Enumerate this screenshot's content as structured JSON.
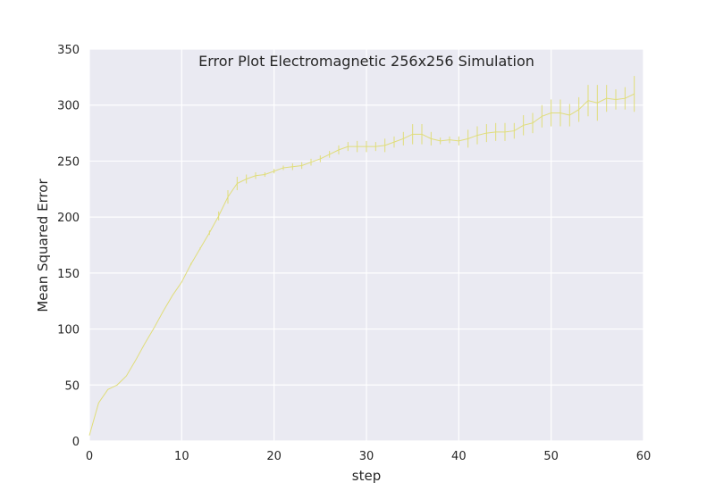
{
  "chart_data": {
    "type": "line",
    "title": "Error Plot Electromagnetic 256x256 Simulation",
    "xlabel": "step",
    "ylabel": "Mean Squared Error",
    "xlim": [
      0,
      60
    ],
    "ylim": [
      0,
      350
    ],
    "xticks": [
      0,
      10,
      20,
      30,
      40,
      50,
      60
    ],
    "yticks": [
      0,
      50,
      100,
      150,
      200,
      250,
      300,
      350
    ],
    "grid": true,
    "colors": {
      "background": "#eaeaf2",
      "grid": "#ffffff",
      "series": "#e0dd7a"
    },
    "series": [
      {
        "x": [
          0,
          1,
          2,
          3,
          4,
          5,
          6,
          7,
          8,
          9,
          10,
          11,
          12,
          13,
          14,
          15,
          16,
          17,
          18,
          19,
          20,
          21,
          22,
          23,
          24,
          25,
          26,
          27,
          28,
          29,
          30,
          31,
          32,
          33,
          34,
          35,
          36,
          37,
          38,
          39,
          40,
          41,
          42,
          43,
          44,
          45,
          46,
          47,
          48,
          49,
          50,
          51,
          52,
          53,
          54,
          55,
          56,
          57,
          58,
          59
        ],
        "y": [
          5,
          34,
          46,
          50,
          58,
          72,
          87,
          101,
          116,
          130,
          142,
          158,
          172,
          186,
          201,
          218,
          230,
          234,
          237,
          238,
          241,
          244,
          245,
          246,
          249,
          252,
          256,
          260,
          263,
          263,
          263,
          263,
          264,
          267,
          270,
          274,
          274,
          270,
          268,
          269,
          268,
          270,
          273,
          275,
          276,
          276,
          277,
          282,
          284,
          290,
          293,
          293,
          291,
          296,
          304,
          302,
          306,
          305,
          306,
          310
        ],
        "err": [
          0,
          0,
          0,
          0,
          0,
          0,
          0,
          0,
          0,
          0,
          0,
          1,
          1,
          2,
          4,
          6,
          6,
          4,
          3,
          2,
          2,
          2,
          3,
          3,
          3,
          3,
          3,
          4,
          4,
          5,
          5,
          4,
          6,
          5,
          6,
          9,
          9,
          6,
          3,
          3,
          4,
          8,
          8,
          8,
          8,
          8,
          7,
          9,
          9,
          10,
          12,
          12,
          10,
          11,
          14,
          16,
          12,
          9,
          10,
          16
        ]
      }
    ]
  }
}
